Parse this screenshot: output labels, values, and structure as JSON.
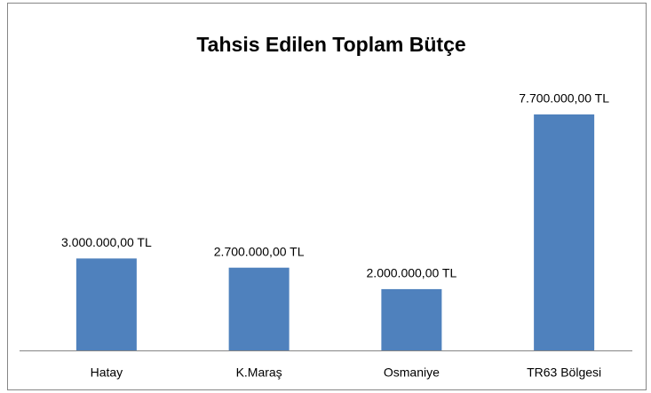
{
  "chart_data": {
    "type": "bar",
    "title": "Tahsis Edilen Toplam Bütçe",
    "categories": [
      "Hatay",
      "K.Maraş",
      "Osmaniye",
      "TR63 Bölgesi"
    ],
    "values": [
      3000000,
      2700000,
      2000000,
      7700000
    ],
    "value_labels": [
      "3.000.000,00 TL",
      "2.700.000,00 TL",
      "2.000.000,00 TL",
      "7.700.000,00 TL"
    ],
    "color": "#4f81bd"
  }
}
